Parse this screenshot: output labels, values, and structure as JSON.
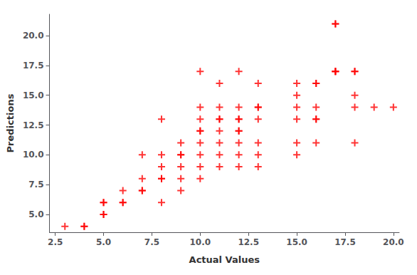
{
  "chart_data": {
    "type": "scatter",
    "x": [
      3,
      4,
      4,
      5,
      5,
      5,
      5,
      6,
      6,
      6,
      7,
      7,
      7,
      7,
      8,
      8,
      8,
      8,
      8,
      8,
      9,
      9,
      9,
      9,
      9,
      9,
      10,
      10,
      10,
      10,
      10,
      10,
      10,
      10,
      10,
      11,
      11,
      11,
      11,
      11,
      11,
      11,
      11,
      12,
      12,
      12,
      12,
      12,
      12,
      12,
      12,
      12,
      13,
      13,
      13,
      13,
      13,
      13,
      13,
      15,
      15,
      15,
      15,
      15,
      15,
      16,
      16,
      16,
      16,
      16,
      16,
      17,
      17,
      17,
      17,
      17,
      18,
      18,
      18,
      18,
      18,
      19,
      20
    ],
    "values": [
      4,
      4,
      4,
      5,
      5,
      6,
      6,
      6,
      6,
      7,
      7,
      7,
      8,
      10,
      6,
      8,
      8,
      9,
      10,
      13,
      7,
      8,
      9,
      10,
      10,
      11,
      8,
      9,
      10,
      11,
      12,
      12,
      13,
      14,
      17,
      9,
      10,
      11,
      12,
      13,
      13,
      14,
      16,
      9,
      10,
      11,
      12,
      12,
      13,
      13,
      14,
      17,
      9,
      10,
      11,
      13,
      14,
      14,
      16,
      10,
      11,
      13,
      14,
      15,
      16,
      11,
      13,
      13,
      14,
      16,
      16,
      17,
      17,
      21,
      21,
      17,
      15,
      17,
      17,
      11,
      14,
      14,
      14
    ],
    "color": "#ff0000",
    "marker": "plus",
    "xlabel": "Actual Values",
    "ylabel": "Predictions",
    "xlim": [
      2.2,
      20.3
    ],
    "ylim": [
      3.5,
      21.8
    ],
    "xticks": [
      2.5,
      {
        "value": 5,
        "label": "5.0"
      },
      7.5,
      {
        "value": 10,
        "label": "10.0"
      },
      12.5,
      {
        "value": 15,
        "label": "15.0"
      },
      17.5,
      {
        "value": 20,
        "label": "20.0"
      }
    ],
    "yticks": [
      {
        "value": 5,
        "label": "5.0"
      },
      7.5,
      {
        "value": 10,
        "label": "10.0"
      },
      12.5,
      {
        "value": 15,
        "label": "15.0"
      },
      17.5,
      {
        "value": 20,
        "label": "20.0"
      }
    ],
    "grid": false
  }
}
